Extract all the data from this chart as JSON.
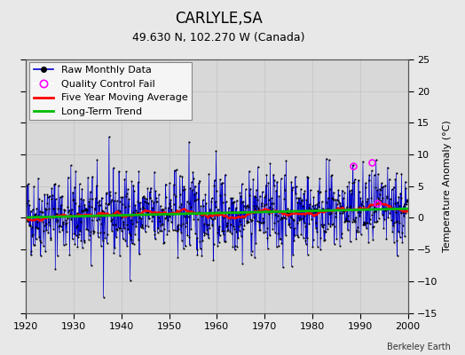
{
  "title": "CARLYLE,SA",
  "subtitle": "49.630 N, 102.270 W (Canada)",
  "watermark": "Berkeley Earth",
  "ylabel": "Temperature Anomaly (°C)",
  "xlim": [
    1920,
    2000
  ],
  "ylim": [
    -15,
    25
  ],
  "yticks": [
    -15,
    -10,
    -5,
    0,
    5,
    10,
    15,
    20,
    25
  ],
  "xticks": [
    1920,
    1930,
    1940,
    1950,
    1960,
    1970,
    1980,
    1990,
    2000
  ],
  "seed": 42,
  "start_year": 1920,
  "end_year": 1999,
  "background_color": "#e8e8e8",
  "plot_bg_color": "#d8d8d8",
  "raw_line_color": "#0000cc",
  "raw_dot_color": "#000000",
  "qc_fail_color": "#ff00ff",
  "moving_avg_color": "#ff0000",
  "trend_color": "#00bb00",
  "legend_fontsize": 8,
  "title_fontsize": 12,
  "subtitle_fontsize": 9,
  "qc_points": [
    [
      1988.5,
      8.2
    ],
    [
      1992.5,
      8.8
    ],
    [
      1993.5,
      2.3
    ]
  ]
}
